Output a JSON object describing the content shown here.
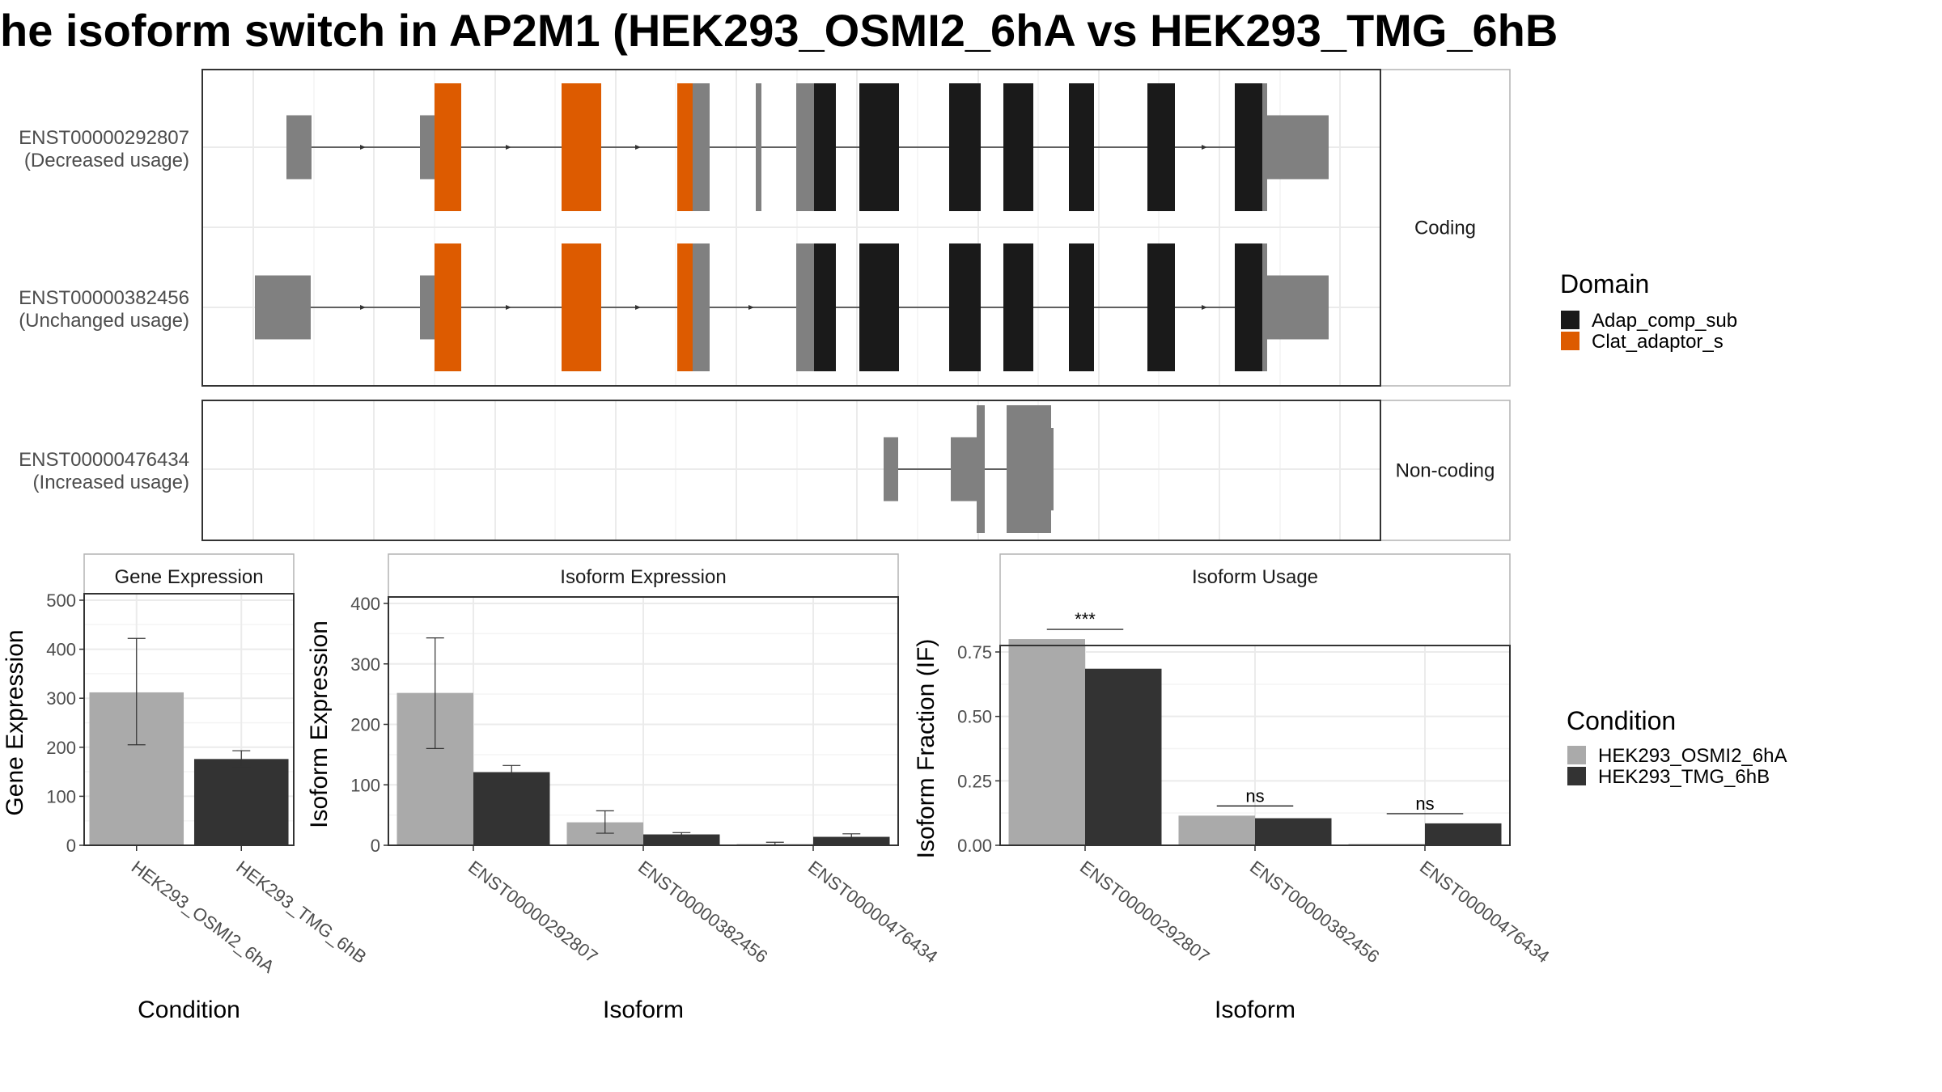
{
  "title": "he isoform switch in AP2M1 (HEK293_OSMI2_6hA vs HEK293_TMG_6hB",
  "colors": {
    "exon": "#808080",
    "adap": "#1a1a1a",
    "clat": "#dd5b00",
    "cond_a": "#aaaaaa",
    "cond_b": "#333333",
    "panel_border": "#333333",
    "strip_border": "#b3b3b3",
    "grid": "#ebebeb"
  },
  "structure": {
    "facet_coding": "Coding",
    "facet_noncoding": "Non-coding",
    "transcripts": [
      {
        "id": "ENST00000292807",
        "usage": "(Decreased usage)",
        "group": "coding"
      },
      {
        "id": "ENST00000382456",
        "usage": "(Unchanged usage)",
        "group": "coding"
      },
      {
        "id": "ENST00000476434",
        "usage": "(Increased usage)",
        "group": "noncoding"
      }
    ],
    "legend": {
      "title": "Domain",
      "items": [
        {
          "label": "Adap_comp_sub",
          "color": "#1a1a1a"
        },
        {
          "label": "Clat_adaptor_s",
          "color": "#dd5b00"
        }
      ]
    }
  },
  "condition_legend": {
    "title": "Condition",
    "items": [
      {
        "label": "HEK293_OSMI2_6hA",
        "color": "#aaaaaa"
      },
      {
        "label": "HEK293_TMG_6hB",
        "color": "#333333"
      }
    ]
  },
  "chart_data": [
    {
      "type": "bar",
      "title": "Gene Expression",
      "xlabel": "Condition",
      "ylabel": "Gene Expression",
      "ylim": [
        0,
        500
      ],
      "yticks": [
        0,
        100,
        200,
        300,
        400,
        500
      ],
      "categories": [
        "HEK293_OSMI2_6hA",
        "HEK293_TMG_6hB"
      ],
      "values": [
        312,
        176
      ],
      "error": [
        [
          205,
          422
        ],
        [
          160,
          193
        ]
      ],
      "grid": true
    },
    {
      "type": "bar",
      "title": "Isoform Expression",
      "xlabel": "Isoform",
      "ylabel": "Isoform Expression",
      "ylim": [
        0,
        400
      ],
      "yticks": [
        0,
        100,
        200,
        300,
        400
      ],
      "categories": [
        "ENST00000292807",
        "ENST00000382456",
        "ENST00000476434"
      ],
      "series": [
        {
          "name": "HEK293_OSMI2_6hA",
          "values": [
            252,
            38,
            2
          ],
          "error": [
            [
              160,
              343
            ],
            [
              20,
              57
            ],
            [
              0,
              5
            ]
          ]
        },
        {
          "name": "HEK293_TMG_6hB",
          "values": [
            121,
            18,
            14
          ],
          "error": [
            [
              110,
              132
            ],
            [
              15,
              21
            ],
            [
              9,
              19
            ]
          ]
        }
      ],
      "grid": true
    },
    {
      "type": "bar",
      "title": "Isoform Usage",
      "xlabel": "Isoform",
      "ylabel": "Isoform Fraction (IF)",
      "ylim": [
        0,
        0.75
      ],
      "yticks": [
        "0.00",
        "0.25",
        "0.50",
        "0.75"
      ],
      "categories": [
        "ENST00000292807",
        "ENST00000382456",
        "ENST00000476434"
      ],
      "series": [
        {
          "name": "HEK293_OSMI2_6hA",
          "values": [
            0.8,
            0.115,
            0.005
          ]
        },
        {
          "name": "HEK293_TMG_6hB",
          "values": [
            0.685,
            0.105,
            0.085
          ]
        }
      ],
      "significance": [
        "***",
        "ns",
        "ns"
      ],
      "grid": true
    }
  ]
}
